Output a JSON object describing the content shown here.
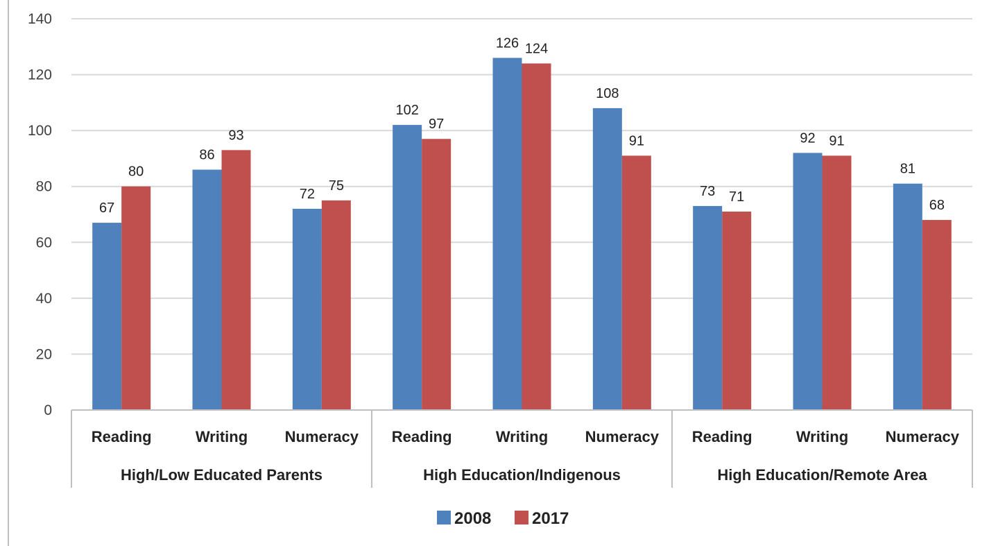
{
  "chart_data": {
    "type": "bar",
    "groups": [
      {
        "label": "High/Low Educated Parents",
        "categories": [
          "Reading",
          "Writing",
          "Numeracy"
        ]
      },
      {
        "label": "High Education/Indigenous",
        "categories": [
          "Reading",
          "Writing",
          "Numeracy"
        ]
      },
      {
        "label": "High Education/Remote Area",
        "categories": [
          "Reading",
          "Writing",
          "Numeracy"
        ]
      }
    ],
    "series": [
      {
        "name": "2008",
        "color": "#4f81bd",
        "values": [
          67,
          86,
          72,
          102,
          126,
          108,
          73,
          92,
          81
        ]
      },
      {
        "name": "2017",
        "color": "#c0504d",
        "values": [
          80,
          93,
          75,
          97,
          124,
          91,
          71,
          91,
          68
        ]
      }
    ],
    "ylim": [
      0,
      140
    ],
    "yticks": [
      0,
      20,
      40,
      60,
      80,
      100,
      120,
      140
    ],
    "grid": true,
    "legend": "bottom",
    "title": "",
    "xlabel": "",
    "ylabel": ""
  }
}
